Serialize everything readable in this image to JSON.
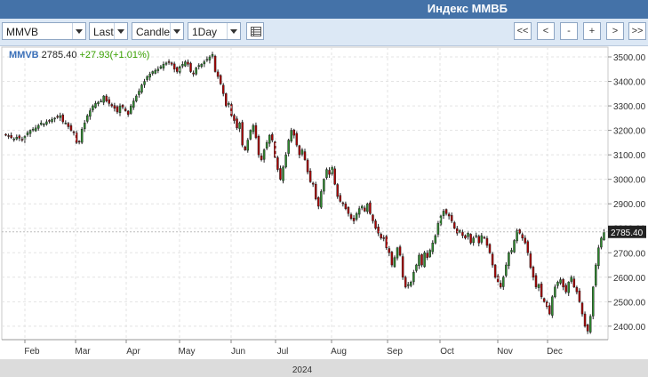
{
  "window": {
    "title": "Индекс ММВБ"
  },
  "toolbar": {
    "symbol": "MMVB",
    "price_field": "Last",
    "chart_style": "Candle",
    "interval": "1Day",
    "table_icon": "table-icon",
    "nav": [
      "<<",
      "<",
      "-",
      "+",
      ">",
      ">>"
    ]
  },
  "legend": {
    "symbol": "MMVB",
    "last": "2785.40",
    "change": "+27.93(+1.01%)"
  },
  "colors": {
    "up": "#2e8b2e",
    "down": "#b00000",
    "header": "#4472a8",
    "toolbar": "#dce8f5"
  },
  "chart_data": {
    "type": "candlestick",
    "interval": "1Day",
    "y_ticks": [
      "2400.00",
      "2500.00",
      "2600.00",
      "2700.00",
      "2800.00",
      "2900.00",
      "3000.00",
      "3100.00",
      "3200.00",
      "3300.00",
      "3400.00",
      "3500.00"
    ],
    "x_months": [
      "Feb",
      "Mar",
      "Apr",
      "May",
      "Jun",
      "Jul",
      "Aug",
      "Sep",
      "Oct",
      "Nov",
      "Dec"
    ],
    "year": "2024",
    "ylim": [
      2345,
      3540
    ],
    "last_label": "2785.40",
    "grid": true,
    "closes": [
      3180,
      3175,
      3170,
      3165,
      3172,
      3168,
      3160,
      3175,
      3190,
      3200,
      3205,
      3210,
      3220,
      3230,
      3225,
      3235,
      3240,
      3245,
      3250,
      3255,
      3260,
      3235,
      3230,
      3215,
      3200,
      3190,
      3150,
      3155,
      3205,
      3230,
      3260,
      3280,
      3300,
      3310,
      3315,
      3320,
      3340,
      3320,
      3310,
      3300,
      3290,
      3275,
      3300,
      3295,
      3280,
      3265,
      3300,
      3320,
      3340,
      3360,
      3385,
      3400,
      3420,
      3430,
      3440,
      3445,
      3450,
      3460,
      3470,
      3475,
      3480,
      3470,
      3450,
      3440,
      3460,
      3470,
      3480,
      3470,
      3440,
      3430,
      3455,
      3465,
      3470,
      3480,
      3490,
      3500,
      3510,
      3440,
      3420,
      3390,
      3350,
      3300,
      3310,
      3260,
      3240,
      3210,
      3230,
      3140,
      3120,
      3160,
      3200,
      3220,
      3170,
      3100,
      3080,
      3120,
      3150,
      3180,
      3160,
      3090,
      3040,
      3000,
      3050,
      3100,
      3160,
      3200,
      3180,
      3140,
      3100,
      3120,
      3080,
      3030,
      2990,
      2980,
      2920,
      2890,
      2950,
      3000,
      3040,
      3020,
      3050,
      2980,
      2930,
      2910,
      2900,
      2880,
      2860,
      2840,
      2830,
      2860,
      2880,
      2890,
      2870,
      2900,
      2860,
      2830,
      2800,
      2780,
      2760,
      2760,
      2720,
      2700,
      2650,
      2680,
      2720,
      2690,
      2600,
      2560,
      2570,
      2580,
      2620,
      2650,
      2690,
      2650,
      2700,
      2680,
      2710,
      2740,
      2770,
      2820,
      2850,
      2870,
      2860,
      2850,
      2830,
      2800,
      2780,
      2790,
      2770,
      2760,
      2780,
      2740,
      2760,
      2770,
      2740,
      2770,
      2760,
      2730,
      2700,
      2650,
      2600,
      2580,
      2560,
      2600,
      2650,
      2700,
      2710,
      2750,
      2790,
      2780,
      2760,
      2740,
      2700,
      2640,
      2600,
      2560,
      2570,
      2520,
      2500,
      2480,
      2450,
      2520,
      2560,
      2580,
      2590,
      2560,
      2540,
      2580,
      2600,
      2560,
      2540,
      2500,
      2450,
      2400,
      2380,
      2440,
      2560,
      2650,
      2720,
      2760,
      2785.4
    ]
  }
}
